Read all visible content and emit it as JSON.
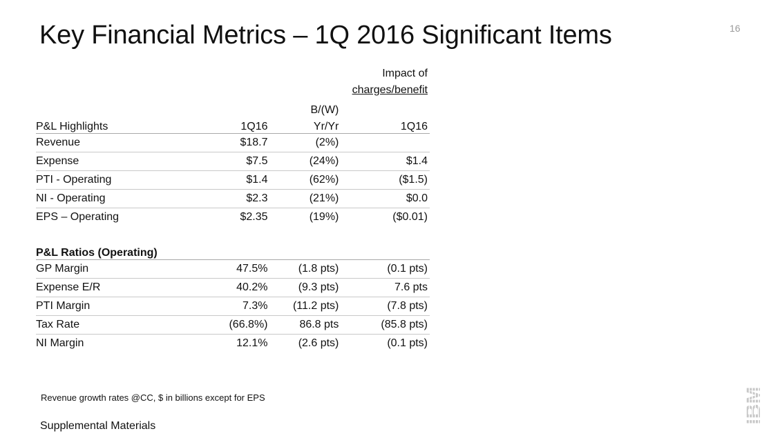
{
  "slide": {
    "title": "Key Financial Metrics – 1Q 2016 Significant Items",
    "page_number": "16"
  },
  "table": {
    "header": {
      "impact_line1": "Impact of",
      "impact_line2": "charges/benefit",
      "bw_line1": "B/(W)",
      "section1_label": "P&L Highlights",
      "col1": "1Q16",
      "col2": "Yr/Yr",
      "col3": "1Q16"
    },
    "highlights": [
      {
        "label": "Revenue",
        "q": "$18.7",
        "bw": "(2%)",
        "impact": ""
      },
      {
        "label": "Expense",
        "q": "$7.5",
        "bw": "(24%)",
        "impact": "$1.4"
      },
      {
        "label": "PTI - Operating",
        "q": "$1.4",
        "bw": "(62%)",
        "impact": "($1.5)"
      },
      {
        "label": "NI - Operating",
        "q": "$2.3",
        "bw": "(21%)",
        "impact": "$0.0"
      },
      {
        "label": "EPS – Operating",
        "q": "$2.35",
        "bw": "(19%)",
        "impact": "($0.01)"
      }
    ],
    "section2_label": "P&L Ratios (Operating)",
    "ratios": [
      {
        "label": "GP Margin",
        "q": "47.5%",
        "bw": "(1.8 pts)",
        "impact": "(0.1 pts)"
      },
      {
        "label": "Expense E/R",
        "q": "40.2%",
        "bw": "(9.3 pts)",
        "impact": "7.6 pts"
      },
      {
        "label": "PTI Margin",
        "q": "7.3%",
        "bw": "(11.2 pts)",
        "impact": "(7.8 pts)"
      },
      {
        "label": "Tax Rate",
        "q": "(66.8%)",
        "bw": "86.8 pts",
        "impact": "(85.8 pts)"
      },
      {
        "label": "NI Margin",
        "q": "12.1%",
        "bw": "(2.6 pts)",
        "impact": "(0.1 pts)"
      }
    ]
  },
  "footnote": "Revenue growth rates @CC, $ in billions except for EPS",
  "footer_label": "Supplemental Materials",
  "logo": {
    "name": "ibm-logo",
    "text": "IBM",
    "color": "#c8c8c8"
  }
}
